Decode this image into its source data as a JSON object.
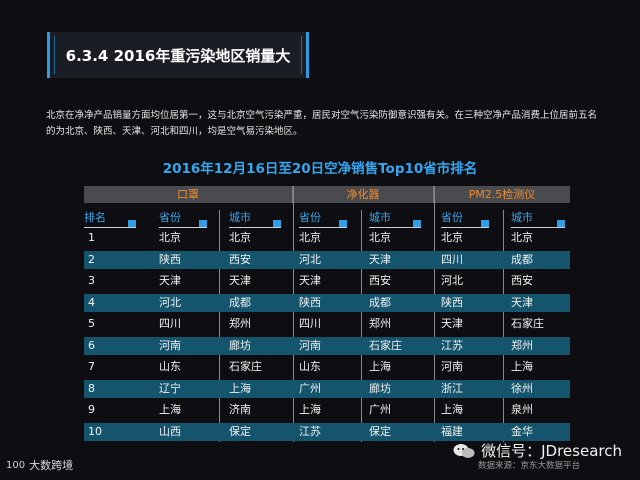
{
  "section_title": "6.3.4 2016年重污染地区销量大",
  "description": "北京在净净产品销量方面均位居第一，这与北京空气污染严重，居民对空气污染防御意识强有关。在三种空净产品消费上位居前五名的为北京、陕西、天津、河北和四川，均是空气易污染地区。",
  "table_title": "2016年12月16日至20日空净销售Top10省市排名",
  "groups": [
    "口罩",
    "净化器",
    "PM2.5检测仪"
  ],
  "columns": [
    "排名",
    "省份",
    "城市",
    "省份",
    "城市",
    "省份",
    "城市"
  ],
  "rows": [
    [
      "1",
      "北京",
      "北京",
      "北京",
      "北京",
      "北京",
      "北京"
    ],
    [
      "2",
      "陕西",
      "西安",
      "河北",
      "天津",
      "四川",
      "成都"
    ],
    [
      "3",
      "天津",
      "天津",
      "天津",
      "西安",
      "河北",
      "西安"
    ],
    [
      "4",
      "河北",
      "成都",
      "陕西",
      "成都",
      "陕西",
      "天津"
    ],
    [
      "5",
      "四川",
      "郑州",
      "四川",
      "郑州",
      "天津",
      "石家庄"
    ],
    [
      "6",
      "河南",
      "廊坊",
      "河南",
      "石家庄",
      "江苏",
      "郑州"
    ],
    [
      "7",
      "山东",
      "石家庄",
      "山东",
      "上海",
      "河南",
      "上海"
    ],
    [
      "8",
      "辽宁",
      "上海",
      "广州",
      "廊坊",
      "浙江",
      "徐州"
    ],
    [
      "9",
      "上海",
      "济南",
      "上海",
      "广州",
      "上海",
      "泉州"
    ],
    [
      "10",
      "山西",
      "保定",
      "江苏",
      "保定",
      "福建",
      "金华"
    ]
  ],
  "watermark": "微信号：JDresearch",
  "source": "数据来源：京东大数据平台",
  "logo_text": "大数跨境",
  "logo_mark": "100",
  "colors": {
    "accent_blue": "#2f9be0",
    "group_orange": "#f08a2a",
    "row_band": "#14546c",
    "header_bar": "#4a4b4e",
    "background": "#0e0e12"
  }
}
